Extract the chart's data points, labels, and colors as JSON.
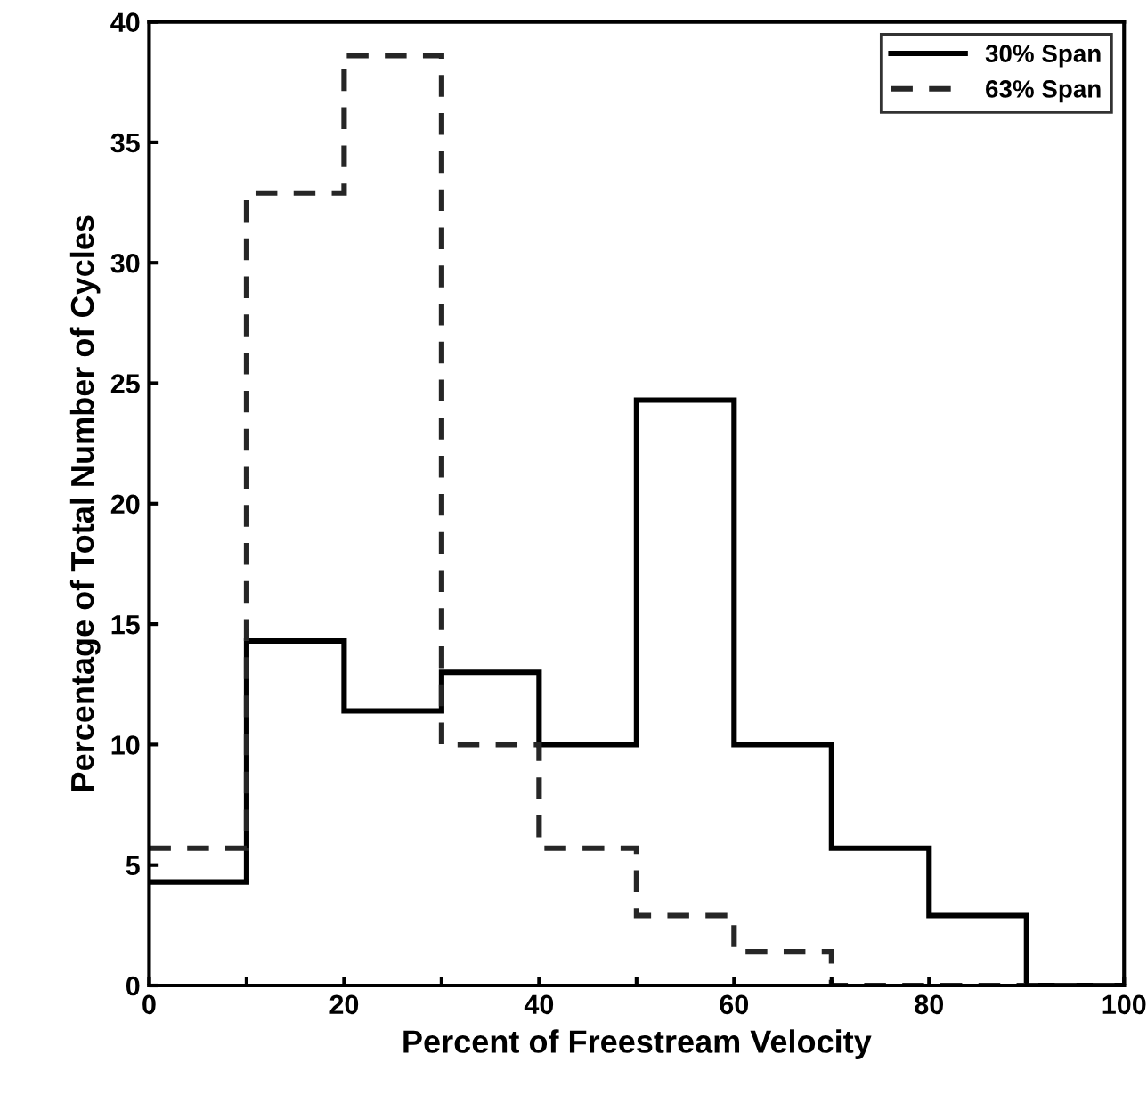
{
  "chart_data": {
    "type": "histogram",
    "xlabel": "Percent of Freestream Velocity",
    "ylabel": "Percentage of Total Number of Cycles",
    "bins": [
      0,
      10,
      20,
      30,
      40,
      50,
      60,
      70,
      80,
      90,
      100
    ],
    "series": [
      {
        "name": "30% Span",
        "color": "#000000",
        "line_style": "solid",
        "values": [
          4.3,
          14.3,
          11.4,
          13.0,
          10.0,
          24.3,
          10.0,
          5.7,
          2.9,
          0
        ]
      },
      {
        "name": "63% Span",
        "color": "#262626",
        "line_style": "dashed",
        "values": [
          5.7,
          32.9,
          38.6,
          10.0,
          5.7,
          2.9,
          1.4,
          0,
          0,
          0
        ]
      }
    ],
    "xlim": [
      0,
      100
    ],
    "ylim": [
      0,
      40
    ],
    "xticks": [
      0,
      {
        "value": 10,
        "label": null
      },
      20,
      {
        "value": 30,
        "label": null
      },
      40,
      {
        "value": 50,
        "label": null
      },
      60,
      {
        "value": 70,
        "label": null
      },
      80,
      {
        "value": 90,
        "label": null
      },
      100
    ],
    "yticks": [
      0,
      5,
      10,
      15,
      20,
      25,
      30,
      35,
      40
    ],
    "legend": "top right",
    "grid": false
  }
}
